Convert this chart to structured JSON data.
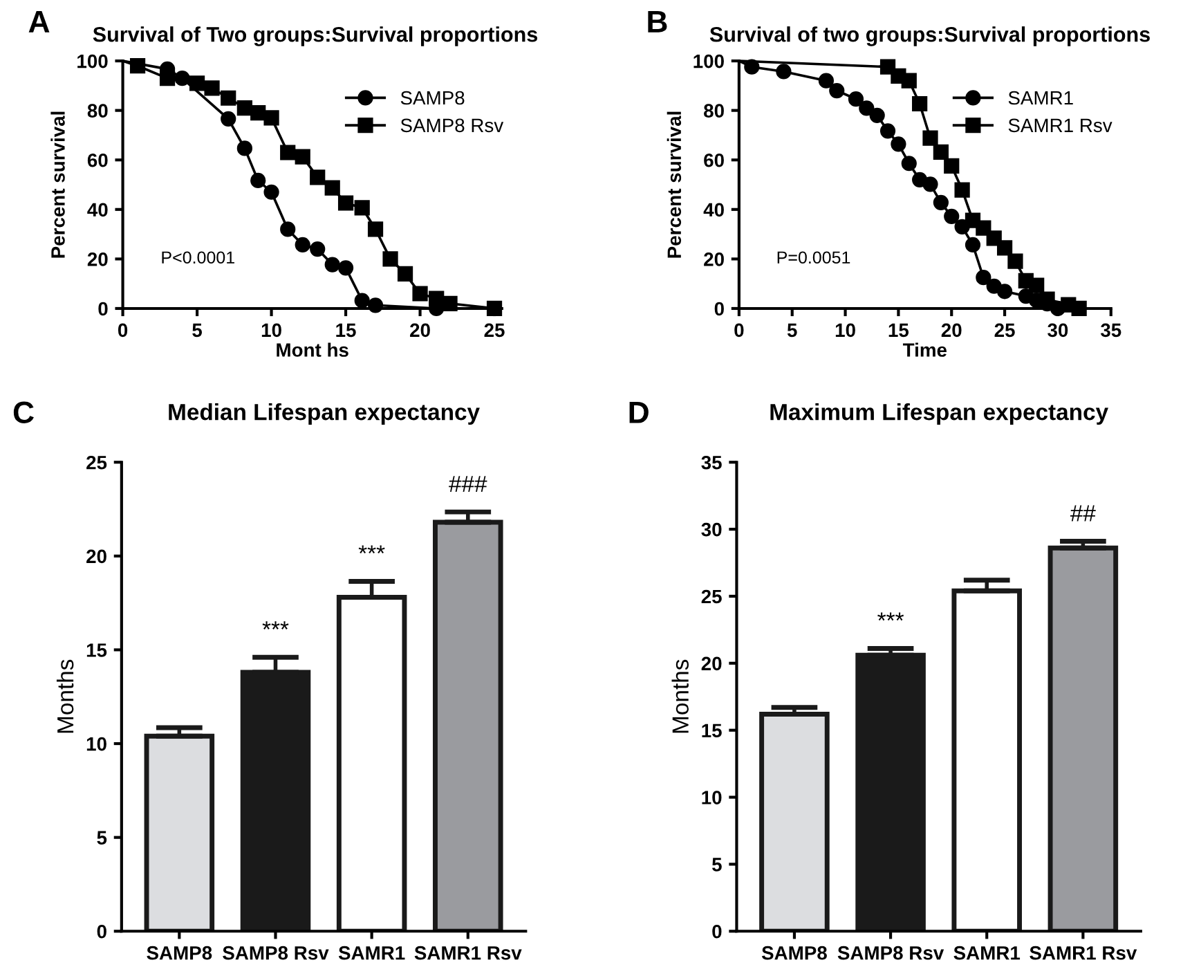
{
  "chart_data": [
    {
      "type": "line",
      "title": "Survival of Two groups:Survival proportions",
      "xlabel": "Mont hs",
      "ylabel": "Percent survival",
      "xlim": [
        0,
        25.5
      ],
      "ylim": [
        0,
        100
      ],
      "xticks": [
        0,
        5,
        10,
        15,
        20,
        25
      ],
      "yticks": [
        0,
        20,
        40,
        60,
        80,
        100
      ],
      "legend": "top right",
      "grid": false,
      "annotations": [
        "A",
        "P<0.0001"
      ],
      "series": [
        {
          "name": "SAMP8",
          "color": "#000000",
          "marker": "circle",
          "x": [
            0,
            3,
            4,
            7.1,
            8.2,
            9.1,
            10,
            11.1,
            12.1,
            13.1,
            14.1,
            15,
            16.1,
            17,
            21.1
          ],
          "values": [
            100,
            96.7,
            93,
            76.6,
            64.7,
            51.7,
            47,
            32,
            25.7,
            24,
            17.7,
            16.4,
            3.2,
            1.3,
            0
          ]
        },
        {
          "name": "SAMP8 Rsv",
          "color": "#000000",
          "marker": "square",
          "x": [
            0,
            1,
            3,
            5,
            6,
            7.1,
            8.2,
            9.1,
            10,
            11.1,
            12.1,
            13.1,
            14.1,
            15,
            16.1,
            17,
            18,
            19,
            20,
            21.1,
            22,
            25
          ],
          "values": [
            100,
            98,
            93,
            91,
            89,
            85,
            81,
            79,
            77,
            63,
            61.3,
            53,
            48.7,
            42.6,
            40.7,
            32,
            20,
            14,
            6,
            4,
            2,
            0
          ]
        }
      ]
    },
    {
      "type": "line",
      "title": "Survival of two groups:Survival proportions",
      "xlabel": "Time",
      "ylabel": "Percent survival",
      "xlim": [
        0,
        35
      ],
      "ylim": [
        0,
        100
      ],
      "xticks": [
        0,
        5,
        10,
        15,
        20,
        25,
        30,
        35
      ],
      "yticks": [
        0,
        20,
        40,
        60,
        80,
        100
      ],
      "legend": "top right",
      "grid": false,
      "annotations": [
        "B",
        "P=0.0051"
      ],
      "series": [
        {
          "name": "SAMR1",
          "color": "#000000",
          "marker": "circle",
          "x": [
            0,
            1.2,
            4.2,
            8.2,
            9.2,
            11,
            12,
            13,
            14,
            15,
            16,
            17,
            18,
            19,
            20,
            21,
            22,
            23,
            24,
            25,
            27,
            28,
            29,
            30
          ],
          "values": [
            100,
            97.6,
            95.7,
            92,
            88,
            84.6,
            80.9,
            78,
            71.7,
            66.4,
            58.6,
            52,
            50.2,
            42.8,
            37.2,
            33,
            25.7,
            12.5,
            9,
            6.9,
            5,
            3.3,
            1.9,
            0
          ]
        },
        {
          "name": "SAMR1 Rsv",
          "color": "#000000",
          "marker": "square",
          "x": [
            0,
            14,
            15,
            16,
            17,
            18,
            19,
            20,
            21,
            22,
            23,
            24,
            25,
            26,
            27,
            28,
            29,
            31,
            32
          ],
          "values": [
            100,
            97.6,
            93.9,
            92,
            82.7,
            68.8,
            63.2,
            57.6,
            47.9,
            35.6,
            32.5,
            28.4,
            24.5,
            19.1,
            11.2,
            9.3,
            3.7,
            1.5,
            0
          ]
        }
      ]
    },
    {
      "type": "bar",
      "title": "Median Lifespan expectancy",
      "ylabel": "Months",
      "categories": [
        "SAMP8",
        "SAMP8 Rsv",
        "SAMR1",
        "SAMR1 Rsv"
      ],
      "values": [
        10.4,
        13.8,
        17.8,
        21.8
      ],
      "errors": [
        0.45,
        0.8,
        0.85,
        0.55
      ],
      "colors": [
        "#dcdde0",
        "#1a1a1a",
        "#ffffff",
        "#9a9b9f"
      ],
      "ylim": [
        0,
        25
      ],
      "yticks": [
        0,
        5,
        10,
        15,
        20,
        25
      ],
      "grid": false,
      "annotations": [
        "C",
        {
          "text": "***",
          "x": "SAMP8 Rsv",
          "y": 14.6
        },
        {
          "text": "***",
          "x": "SAMR1",
          "y": 18.65
        },
        {
          "text": "###",
          "x": "SAMR1 Rsv",
          "y": 22.35
        }
      ]
    },
    {
      "type": "bar",
      "title": "Maximum Lifespan expectancy",
      "ylabel": "Months",
      "categories": [
        "SAMP8",
        "SAMP8 Rsv",
        "SAMR1",
        "SAMR1 Rsv"
      ],
      "values": [
        16.2,
        20.6,
        25.4,
        28.6
      ],
      "errors": [
        0.5,
        0.5,
        0.8,
        0.5
      ],
      "colors": [
        "#dcdde0",
        "#1a1a1a",
        "#ffffff",
        "#9a9b9f"
      ],
      "ylim": [
        0,
        35
      ],
      "yticks": [
        0,
        5,
        10,
        15,
        20,
        25,
        30,
        35
      ],
      "grid": false,
      "annotations": [
        "D",
        {
          "text": "***",
          "x": "SAMP8 Rsv",
          "y": 21.1
        },
        {
          "text": "##",
          "x": "SAMR1 Rsv",
          "y": 29.1
        }
      ]
    }
  ]
}
